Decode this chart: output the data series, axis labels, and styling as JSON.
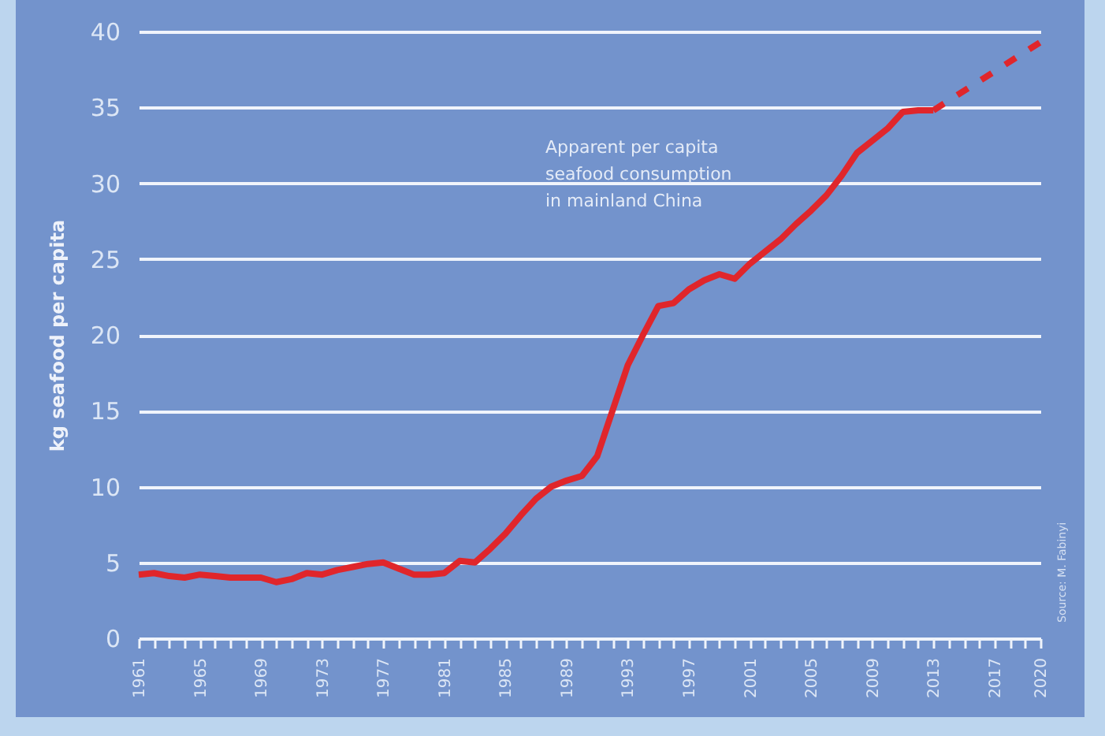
{
  "chart_data": {
    "type": "line",
    "ylabel": "kg seafood per capita",
    "xlim": [
      1961,
      2020
    ],
    "ylim": [
      0,
      40
    ],
    "yticks": [
      0,
      5,
      10,
      15,
      20,
      25,
      30,
      35,
      40
    ],
    "xticks": [
      1961,
      {
        "value": 1962,
        "label": null
      },
      {
        "value": 1963,
        "label": null
      },
      {
        "value": 1964,
        "label": null
      },
      1965,
      {
        "value": 1966,
        "label": null
      },
      {
        "value": 1967,
        "label": null
      },
      {
        "value": 1968,
        "label": null
      },
      1969,
      {
        "value": 1970,
        "label": null
      },
      {
        "value": 1971,
        "label": null
      },
      {
        "value": 1972,
        "label": null
      },
      1973,
      {
        "value": 1974,
        "label": null
      },
      {
        "value": 1975,
        "label": null
      },
      {
        "value": 1976,
        "label": null
      },
      1977,
      {
        "value": 1978,
        "label": null
      },
      {
        "value": 1979,
        "label": null
      },
      {
        "value": 1980,
        "label": null
      },
      1981,
      {
        "value": 1982,
        "label": null
      },
      {
        "value": 1983,
        "label": null
      },
      {
        "value": 1984,
        "label": null
      },
      1985,
      {
        "value": 1986,
        "label": null
      },
      {
        "value": 1987,
        "label": null
      },
      {
        "value": 1988,
        "label": null
      },
      1989,
      {
        "value": 1990,
        "label": null
      },
      {
        "value": 1991,
        "label": null
      },
      {
        "value": 1992,
        "label": null
      },
      1993,
      {
        "value": 1994,
        "label": null
      },
      {
        "value": 1995,
        "label": null
      },
      {
        "value": 1996,
        "label": null
      },
      1997,
      {
        "value": 1998,
        "label": null
      },
      {
        "value": 1999,
        "label": null
      },
      {
        "value": 2000,
        "label": null
      },
      2001,
      {
        "value": 2002,
        "label": null
      },
      {
        "value": 2003,
        "label": null
      },
      {
        "value": 2004,
        "label": null
      },
      2005,
      {
        "value": 2006,
        "label": null
      },
      {
        "value": 2007,
        "label": null
      },
      {
        "value": 2008,
        "label": null
      },
      2009,
      {
        "value": 2010,
        "label": null
      },
      {
        "value": 2011,
        "label": null
      },
      {
        "value": 2012,
        "label": null
      },
      2013,
      {
        "value": 2014,
        "label": null
      },
      {
        "value": 2015,
        "label": null
      },
      {
        "value": 2016,
        "label": null
      },
      2017,
      {
        "value": 2018,
        "label": null
      },
      {
        "value": 2019,
        "label": null
      },
      2020
    ],
    "grid": "y",
    "annotations": [
      "Apparent per capita\nseafood consumption\nin mainland China",
      "Source: M. Fabinyi"
    ],
    "series": [
      {
        "color": "#e0262b",
        "line_style": "solid",
        "x": [
          1961,
          1962,
          1963,
          1964,
          1965,
          1966,
          1967,
          1968,
          1969,
          1970,
          1971,
          1972,
          1973,
          1974,
          1975,
          1976,
          1977,
          1978,
          1979,
          1980,
          1981,
          1982,
          1983,
          1984,
          1985,
          1986,
          1987,
          1988,
          1989,
          1990,
          1991,
          1992,
          1993,
          1994,
          1995,
          1996,
          1997,
          1998,
          1999,
          2000,
          2001,
          2002,
          2003,
          2004,
          2005,
          2006,
          2007,
          2008,
          2009,
          2010,
          2011,
          2012,
          2013
        ],
        "values": [
          4.2,
          4.3,
          4.1,
          4.0,
          4.2,
          4.1,
          4.0,
          4.0,
          4.0,
          3.7,
          3.9,
          4.3,
          4.2,
          4.5,
          4.7,
          4.9,
          5.0,
          4.6,
          4.2,
          4.2,
          4.3,
          5.1,
          5.0,
          5.9,
          6.9,
          8.1,
          9.2,
          10.0,
          10.4,
          10.7,
          12.0,
          15.0,
          18.0,
          20.0,
          21.9,
          22.1,
          23.0,
          23.6,
          24.0,
          23.7,
          24.7,
          25.5,
          26.3,
          27.3,
          28.2,
          29.2,
          30.5,
          32.0,
          32.8,
          33.6,
          34.7,
          34.8,
          34.8
        ]
      },
      {
        "color": "#e0262b",
        "line_style": "dashed",
        "x": [
          2013,
          2020
        ],
        "values": [
          34.8,
          39.3
        ]
      }
    ]
  }
}
